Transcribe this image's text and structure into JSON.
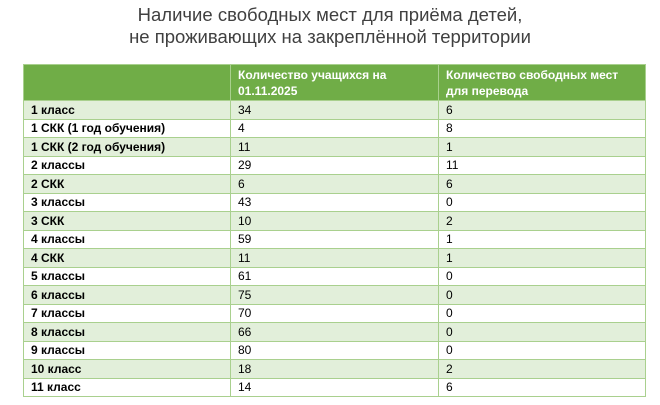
{
  "title": {
    "line1": "Наличие свободных мест для приёма детей,",
    "line2": "не проживающих на закреплённой территории"
  },
  "table": {
    "headers": [
      "",
      "Количество учащихся на 01.11.2025",
      "Количество свободных мест для перевода"
    ],
    "rows": [
      {
        "name": "1 класс",
        "students": "34",
        "free": "6"
      },
      {
        "name": "1 СКК (1 год обучения)",
        "students": "4",
        "free": "8"
      },
      {
        "name": "1 СКК (2 год обучения)",
        "students": "11",
        "free": "1"
      },
      {
        "name": "2 классы",
        "students": "29",
        "free": "11"
      },
      {
        "name": "2 СКК",
        "students": "6",
        "free": "6"
      },
      {
        "name": "3 классы",
        "students": "43",
        "free": "0"
      },
      {
        "name": "3 СКК",
        "students": "10",
        "free": "2"
      },
      {
        "name": "4 классы",
        "students": "59",
        "free": "1"
      },
      {
        "name": "4 СКК",
        "students": "11",
        "free": "1"
      },
      {
        "name": "5 классы",
        "students": "61",
        "free": "0"
      },
      {
        "name": "6 классы",
        "students": "75",
        "free": "0"
      },
      {
        "name": "7 классы",
        "students": "70",
        "free": "0"
      },
      {
        "name": "8 классы",
        "students": "66",
        "free": "0"
      },
      {
        "name": "9 классы",
        "students": "80",
        "free": "0"
      },
      {
        "name": "10 класс",
        "students": "18",
        "free": "2"
      },
      {
        "name": "11 класс",
        "students": "14",
        "free": "6"
      }
    ]
  },
  "colors": {
    "header_bg": "#70ad47",
    "band_bg": "#e2efda",
    "border": "#a9d08e",
    "title_text": "#404040"
  }
}
